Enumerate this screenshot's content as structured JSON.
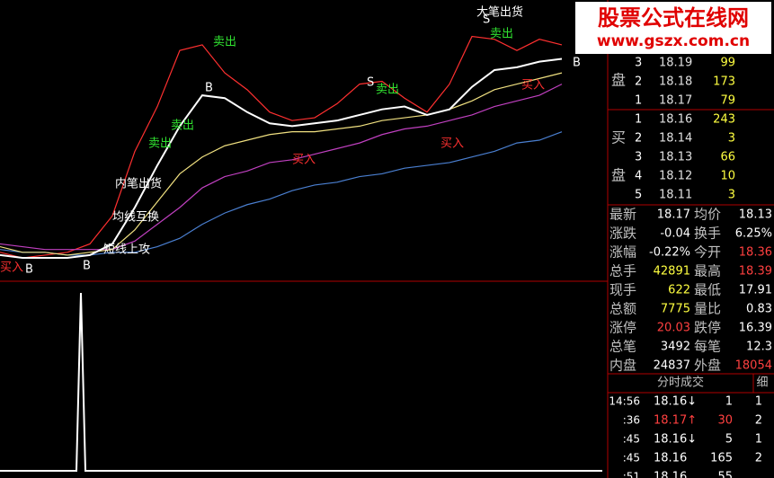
{
  "watermark": {
    "name": "股票公式在线网",
    "url": "www.gszx.com.cn"
  },
  "chart_data": [
    {
      "type": "line",
      "xlim": [
        0,
        135
      ],
      "ylim": [
        0,
        100
      ],
      "x": [
        0,
        5,
        10,
        15,
        20,
        25,
        30,
        35,
        40,
        45,
        50,
        55,
        60,
        65,
        70,
        75,
        80,
        85,
        90,
        95,
        100,
        105,
        110,
        115,
        120,
        125
      ],
      "series": [
        {
          "color": "#ff3030",
          "values": [
            10,
            8,
            9,
            10,
            13,
            23,
            46,
            62,
            82,
            84,
            74,
            68,
            60,
            57,
            58,
            63,
            70,
            71,
            65,
            60,
            70,
            87,
            86,
            82,
            86,
            84
          ]
        },
        {
          "color": "#4a7fd0",
          "values": [
            11,
            10,
            10,
            9,
            9,
            10,
            10,
            12,
            15,
            20,
            24,
            27,
            29,
            32,
            34,
            35,
            37,
            38,
            40,
            41,
            42,
            44,
            46,
            49,
            50,
            53
          ]
        },
        {
          "color": "#c040c0",
          "values": [
            13,
            12,
            11,
            11,
            11,
            11,
            14,
            20,
            26,
            33,
            37,
            39,
            42,
            43,
            45,
            47,
            49,
            52,
            54,
            55,
            57,
            59,
            62,
            64,
            66,
            70
          ]
        },
        {
          "color": "#f0e080",
          "values": [
            12,
            10,
            10,
            9,
            10,
            11,
            18,
            28,
            38,
            44,
            48,
            50,
            52,
            53,
            53,
            54,
            55,
            57,
            58,
            59,
            61,
            64,
            68,
            70,
            72,
            74
          ]
        },
        {
          "color": "#ffffff",
          "values": [
            9,
            8,
            8,
            8,
            9,
            13,
            26,
            41,
            55,
            66,
            65,
            60,
            56,
            55,
            56,
            57,
            59,
            61,
            62,
            59,
            61,
            69,
            75,
            76,
            78,
            79
          ]
        }
      ],
      "annotations": [
        "大笔出货",
        "卖出",
        "卖出",
        "卖出",
        "卖出",
        "卖出",
        "买入",
        "买入",
        "买入",
        "内笔出货",
        "均线互换",
        "短线上攻",
        "买入",
        "B",
        "B",
        "B",
        "B",
        "S",
        "S"
      ]
    },
    {
      "type": "line",
      "xlim": [
        0,
        135
      ],
      "ylim": [
        0,
        100
      ],
      "x": [
        0,
        17,
        18,
        19,
        134
      ],
      "series": [
        {
          "color": "#ffffff",
          "values": [
            0,
            0,
            100,
            0,
            0
          ]
        }
      ]
    }
  ],
  "quote": {
    "sell_label": "盘",
    "buy_label": [
      "买",
      "盘"
    ],
    "sell": [
      {
        "level": "3",
        "price": "18.19",
        "vol": "99"
      },
      {
        "level": "2",
        "price": "18.18",
        "vol": "173"
      },
      {
        "level": "1",
        "price": "18.17",
        "vol": "79"
      }
    ],
    "buy": [
      {
        "level": "1",
        "price": "18.16",
        "vol": "243"
      },
      {
        "level": "2",
        "price": "18.14",
        "vol": "3"
      },
      {
        "level": "3",
        "price": "18.13",
        "vol": "66"
      },
      {
        "level": "4",
        "price": "18.12",
        "vol": "10"
      },
      {
        "level": "5",
        "price": "18.11",
        "vol": "3"
      }
    ],
    "stats": [
      [
        "最新",
        "18.17",
        "均价",
        "18.13"
      ],
      [
        "涨跌",
        "-0.04",
        "换手",
        "6.25%"
      ],
      [
        "涨幅",
        "-0.22%",
        "今开",
        "18.36"
      ],
      [
        "总手",
        "42891",
        "最高",
        "18.39"
      ],
      [
        "现手",
        "622",
        "最低",
        "17.91"
      ],
      [
        "总额",
        "7775",
        "量比",
        "0.83"
      ],
      [
        "涨停",
        "20.03",
        "跌停",
        "16.39"
      ],
      [
        "总笔",
        "3492",
        "每笔",
        "12.3"
      ],
      [
        "内盘",
        "24837",
        "外盘",
        "18054"
      ]
    ],
    "trades_title": "分时成交",
    "trades_detail": "细",
    "trades": [
      [
        "14:56",
        "18.16↓",
        "1",
        "1"
      ],
      [
        ":36",
        "18.17↑",
        "30",
        "2"
      ],
      [
        ":45",
        "18.16↓",
        "5",
        "1"
      ],
      [
        ":45",
        "18.16",
        "165",
        "2"
      ],
      [
        ":51",
        "18.16",
        "55"
      ]
    ]
  }
}
